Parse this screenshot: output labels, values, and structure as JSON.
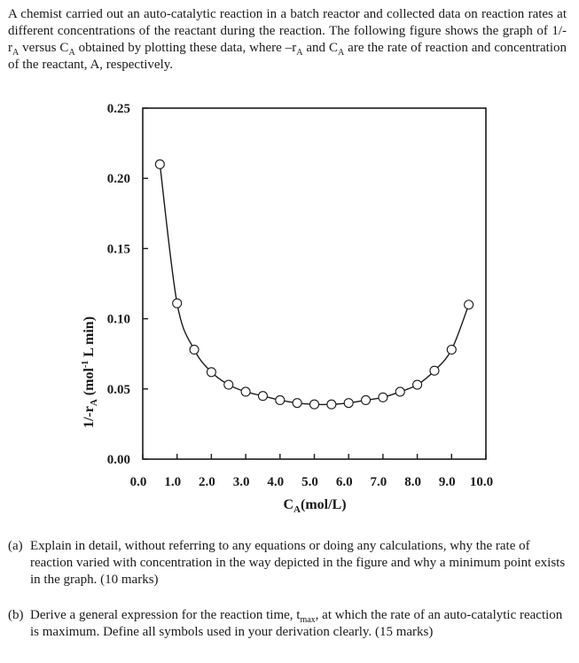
{
  "intro": {
    "part1": "A chemist carried out an auto-catalytic reaction in a batch reactor and collected data on reaction rates at different concentrations of the reactant during the reaction. The following figure shows the graph of 1/-r",
    "sub_a1": "A",
    "part2": " versus C",
    "sub_a2": "A",
    "part3": " obtained by plotting these data, where –r",
    "sub_a3": "A",
    "part4": " and C",
    "sub_a4": "A",
    "part5": " are the rate of reaction and concentration of the reactant, A, respectively."
  },
  "chart_data": {
    "type": "scatter",
    "xlabel": "C",
    "xlabel_sub": "A",
    "xlabel_unit": "(mol/L)",
    "ylabel_main": "1/-r",
    "ylabel_sub": "A",
    "ylabel_unit_pre": " (mol",
    "ylabel_sup": "-1",
    "ylabel_unit_post": " L min)",
    "xlim": [
      0,
      10
    ],
    "ylim": [
      0,
      0.25
    ],
    "x_ticks": [
      "0.0",
      "1.0",
      "2.0",
      "3.0",
      "4.0",
      "5.0",
      "6.0",
      "7.0",
      "8.0",
      "9.0",
      "10.0"
    ],
    "y_ticks": [
      "0.00",
      "0.05",
      "0.10",
      "0.15",
      "0.20",
      "0.25"
    ],
    "grid": false,
    "series": [
      {
        "marker": "open-circle",
        "line": "smooth",
        "points": [
          [
            0.5,
            0.21
          ],
          [
            1.0,
            0.111
          ],
          [
            1.5,
            0.078
          ],
          [
            2.0,
            0.062
          ],
          [
            2.5,
            0.053
          ],
          [
            3.0,
            0.048
          ],
          [
            3.5,
            0.045
          ],
          [
            4.0,
            0.042
          ],
          [
            4.5,
            0.04
          ],
          [
            5.0,
            0.039
          ],
          [
            5.5,
            0.039
          ],
          [
            6.0,
            0.04
          ],
          [
            6.5,
            0.042
          ],
          [
            7.0,
            0.044
          ],
          [
            7.5,
            0.048
          ],
          [
            8.0,
            0.053
          ],
          [
            8.5,
            0.063
          ],
          [
            9.0,
            0.078
          ],
          [
            9.5,
            0.11
          ]
        ]
      }
    ],
    "colors": {
      "ink": "#1a1a1a",
      "marker_fill": "#ffffff"
    }
  },
  "questions": [
    {
      "label": "(a)",
      "text": "Explain in detail, without referring to any equations or doing any calculations, why the rate of reaction varied with concentration in the way depicted in the figure and why a minimum point exists in the graph. (10 marks)"
    },
    {
      "label": "(b)",
      "text_pre": "Derive a general expression for the reaction time, t",
      "text_sub": "max",
      "text_post": ", at which the rate of an auto-catalytic reaction is maximum. Define all symbols used in your derivation clearly. (15 marks)"
    }
  ]
}
